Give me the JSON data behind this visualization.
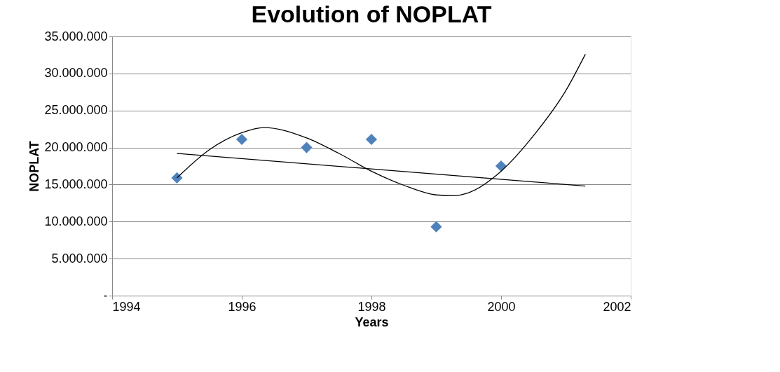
{
  "chart_data": {
    "type": "scatter",
    "title": "Evolution of NOPLAT",
    "xlabel": "Years",
    "ylabel": "NOPLAT",
    "xlim": [
      1994,
      2002
    ],
    "xticks": [
      1994,
      1996,
      1998,
      2000,
      2002
    ],
    "ylim": [
      0,
      35000000
    ],
    "yticks": [
      {
        "value": 0,
        "label": "-"
      },
      {
        "value": 5000000,
        "label": "5.000.000"
      },
      {
        "value": 10000000,
        "label": "10.000.000"
      },
      {
        "value": 15000000,
        "label": "15.000.000"
      },
      {
        "value": 20000000,
        "label": "20.000.000"
      },
      {
        "value": 25000000,
        "label": "25.000.000"
      },
      {
        "value": 30000000,
        "label": "30.000.000"
      },
      {
        "value": 35000000,
        "label": "35.000.000"
      }
    ],
    "grid": "y",
    "marker": "diamond",
    "series": [
      {
        "color": "#4f81bd",
        "x": [
          1995,
          1996,
          1997,
          1998,
          1999,
          2000
        ],
        "values": [
          15900000,
          21100000,
          20000000,
          21100000,
          9300000,
          17500000
        ]
      },
      {
        "type": "line",
        "color": "#000000",
        "marker": "none",
        "x": [
          1995,
          2001.3
        ],
        "values": [
          19200000,
          14800000
        ]
      },
      {
        "type": "line",
        "color": "#000000",
        "marker": "none",
        "x": [
          1995,
          1995.5,
          1996,
          1996.34,
          1997,
          1997.5,
          1998,
          1998.5,
          1999,
          1999.26,
          1999.5,
          2000,
          2000.5,
          2001,
          2001.3
        ],
        "values": [
          15900000,
          19700000,
          22000000,
          22700000,
          21300000,
          19200000,
          16800000,
          14900000,
          13600000,
          13500000,
          13900000,
          16800000,
          21600000,
          27700000,
          32600000
        ]
      }
    ]
  }
}
